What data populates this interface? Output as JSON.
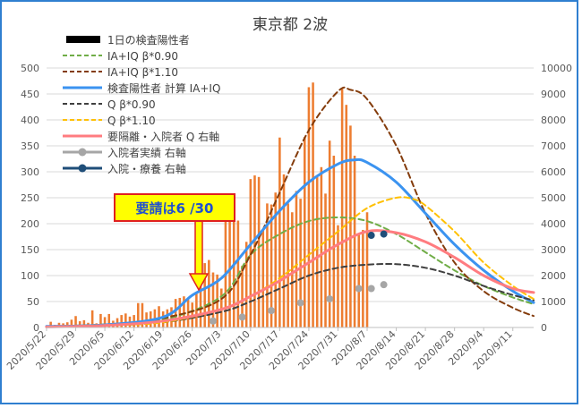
{
  "chart_data": {
    "type": "bar+line",
    "title": "東京都 2波",
    "x_ticks": [
      "2020/5/22",
      "2020/5/29",
      "2020/6/5",
      "2020/6/12",
      "2020/6/19",
      "2020/6/26",
      "2020/7/3",
      "2020/7/10",
      "2020/7/17",
      "2020/7/24",
      "2020/7/31",
      "2020/8/7",
      "2020/8/14",
      "2020/8/21",
      "2020/8/28",
      "2020/9/4",
      "2020/9/11"
    ],
    "x_start": "2020/5/22",
    "x_end": "2020/9/16",
    "ylim_left": [
      0,
      500
    ],
    "yticks_left": [
      "0",
      "50",
      "100",
      "150",
      "200",
      "250",
      "300",
      "350",
      "400",
      "450",
      "500"
    ],
    "ylim_right": [
      0,
      10000
    ],
    "yticks_right": [
      "0",
      "1000",
      "2000",
      "3000",
      "4000",
      "5000",
      "6000",
      "7000",
      "8000",
      "9000",
      "10000"
    ],
    "grid": true,
    "legend_position": "top-left",
    "colors": {
      "bar": "#ed7d31",
      "ia_090": "#70ad47",
      "ia_110": "#843c0c",
      "ia_calc": "#3b93f0",
      "q_090": "#404040",
      "q_110": "#ffc000",
      "q_isolation": "#ff7c80",
      "hosp_actual": "#a6a6a6",
      "hosp_ryouyou": "#1f4e79",
      "axis_text": "#595959",
      "grid": "#d9d9d9"
    },
    "series": [
      {
        "name": "1日の検査陽性者",
        "kind": "bar",
        "axis": "left",
        "start": "2020/5/22",
        "values": [
          3,
          11,
          5,
          9,
          8,
          10,
          15,
          22,
          12,
          14,
          9,
          33,
          8,
          26,
          20,
          26,
          13,
          18,
          24,
          27,
          21,
          24,
          47,
          47,
          29,
          31,
          35,
          41,
          31,
          35,
          39,
          55,
          57,
          60,
          54,
          48,
          67,
          107,
          124,
          130,
          106,
          102,
          75,
          224,
          243,
          206,
          206,
          119,
          165,
          286,
          293,
          290,
          188,
          239,
          237,
          260,
          366,
          295,
          239,
          222,
          263,
          248,
          367,
          463,
          472,
          292,
          309,
          258,
          360,
          331,
          197,
          462,
          429,
          389,
          331,
          181,
          188,
          222
        ]
      },
      {
        "name": "IA+IQ β*0.90",
        "kind": "line",
        "dash": true,
        "axis": "left",
        "points": [
          [
            "2020/5/22",
            2
          ],
          [
            "2020/6/5",
            6
          ],
          [
            "2020/6/19",
            15
          ],
          [
            "2020/7/3",
            60
          ],
          [
            "2020/7/10",
            140
          ],
          [
            "2020/7/17",
            180
          ],
          [
            "2020/7/24",
            205
          ],
          [
            "2020/7/31",
            212
          ],
          [
            "2020/8/7",
            205
          ],
          [
            "2020/8/14",
            180
          ],
          [
            "2020/8/21",
            145
          ],
          [
            "2020/8/28",
            110
          ],
          [
            "2020/9/4",
            80
          ],
          [
            "2020/9/11",
            58
          ],
          [
            "2020/9/16",
            45
          ]
        ]
      },
      {
        "name": "IA+IQ β*1.10",
        "kind": "line",
        "dash": true,
        "axis": "left",
        "points": [
          [
            "2020/5/22",
            2
          ],
          [
            "2020/6/5",
            5
          ],
          [
            "2020/6/19",
            18
          ],
          [
            "2020/7/3",
            55
          ],
          [
            "2020/7/10",
            140
          ],
          [
            "2020/7/17",
            260
          ],
          [
            "2020/7/24",
            380
          ],
          [
            "2020/7/31",
            455
          ],
          [
            "2020/8/3",
            458
          ],
          [
            "2020/8/7",
            440
          ],
          [
            "2020/8/14",
            350
          ],
          [
            "2020/8/21",
            220
          ],
          [
            "2020/8/28",
            125
          ],
          [
            "2020/9/4",
            70
          ],
          [
            "2020/9/11",
            38
          ],
          [
            "2020/9/16",
            22
          ]
        ]
      },
      {
        "name": "検査陽性者 計算 IA+IQ",
        "kind": "line",
        "axis": "left",
        "points": [
          [
            "2020/5/22",
            2
          ],
          [
            "2020/6/5",
            5
          ],
          [
            "2020/6/19",
            20
          ],
          [
            "2020/6/26",
            62
          ],
          [
            "2020/7/3",
            95
          ],
          [
            "2020/7/10",
            160
          ],
          [
            "2020/7/17",
            225
          ],
          [
            "2020/7/24",
            280
          ],
          [
            "2020/7/31",
            315
          ],
          [
            "2020/8/4",
            323
          ],
          [
            "2020/8/7",
            318
          ],
          [
            "2020/8/14",
            280
          ],
          [
            "2020/8/21",
            220
          ],
          [
            "2020/8/28",
            160
          ],
          [
            "2020/9/4",
            110
          ],
          [
            "2020/9/11",
            70
          ],
          [
            "2020/9/16",
            48
          ]
        ]
      },
      {
        "name": "Q β*0.90",
        "kind": "line",
        "dash": true,
        "axis": "right",
        "points": [
          [
            "2020/5/22",
            20
          ],
          [
            "2020/6/5",
            80
          ],
          [
            "2020/6/19",
            200
          ],
          [
            "2020/7/3",
            600
          ],
          [
            "2020/7/10",
            1000
          ],
          [
            "2020/7/17",
            1500
          ],
          [
            "2020/7/24",
            2000
          ],
          [
            "2020/7/31",
            2300
          ],
          [
            "2020/8/7",
            2420
          ],
          [
            "2020/8/14",
            2440
          ],
          [
            "2020/8/21",
            2300
          ],
          [
            "2020/8/28",
            2000
          ],
          [
            "2020/9/4",
            1600
          ],
          [
            "2020/9/11",
            1250
          ],
          [
            "2020/9/16",
            1050
          ]
        ]
      },
      {
        "name": "Q β*1.10",
        "kind": "line",
        "dash": true,
        "axis": "right",
        "points": [
          [
            "2020/5/22",
            20
          ],
          [
            "2020/6/5",
            80
          ],
          [
            "2020/6/19",
            200
          ],
          [
            "2020/7/3",
            700
          ],
          [
            "2020/7/10",
            1200
          ],
          [
            "2020/7/17",
            1900
          ],
          [
            "2020/7/24",
            2800
          ],
          [
            "2020/7/31",
            3700
          ],
          [
            "2020/8/7",
            4600
          ],
          [
            "2020/8/14",
            5000
          ],
          [
            "2020/8/18",
            4950
          ],
          [
            "2020/8/21",
            4700
          ],
          [
            "2020/8/28",
            3700
          ],
          [
            "2020/9/4",
            2500
          ],
          [
            "2020/9/11",
            1600
          ],
          [
            "2020/9/16",
            1100
          ]
        ]
      },
      {
        "name": "要隔離・入院者 Q 右軸",
        "kind": "line",
        "axis": "right",
        "points": [
          [
            "2020/5/22",
            20
          ],
          [
            "2020/6/5",
            80
          ],
          [
            "2020/6/19",
            250
          ],
          [
            "2020/7/3",
            700
          ],
          [
            "2020/7/10",
            1200
          ],
          [
            "2020/7/17",
            1800
          ],
          [
            "2020/7/24",
            2500
          ],
          [
            "2020/7/31",
            3200
          ],
          [
            "2020/8/7",
            3700
          ],
          [
            "2020/8/14",
            3650
          ],
          [
            "2020/8/21",
            3300
          ],
          [
            "2020/8/28",
            2700
          ],
          [
            "2020/9/4",
            2000
          ],
          [
            "2020/9/11",
            1500
          ],
          [
            "2020/9/16",
            1350
          ]
        ]
      },
      {
        "name": "入院者実績 右軸",
        "kind": "scatter",
        "axis": "right",
        "points": [
          [
            "2020/7/1",
            250
          ],
          [
            "2020/7/8",
            400
          ],
          [
            "2020/7/15",
            650
          ],
          [
            "2020/7/22",
            950
          ],
          [
            "2020/7/29",
            1100
          ],
          [
            "2020/8/5",
            1500
          ],
          [
            "2020/8/8",
            1500
          ],
          [
            "2020/8/11",
            1650
          ]
        ]
      },
      {
        "name": "入院・療養 右軸",
        "kind": "scatter",
        "axis": "right",
        "points": [
          [
            "2020/8/8",
            3550
          ],
          [
            "2020/8/11",
            3600
          ]
        ]
      }
    ]
  },
  "annotation": {
    "text": "要請は6 /30"
  }
}
